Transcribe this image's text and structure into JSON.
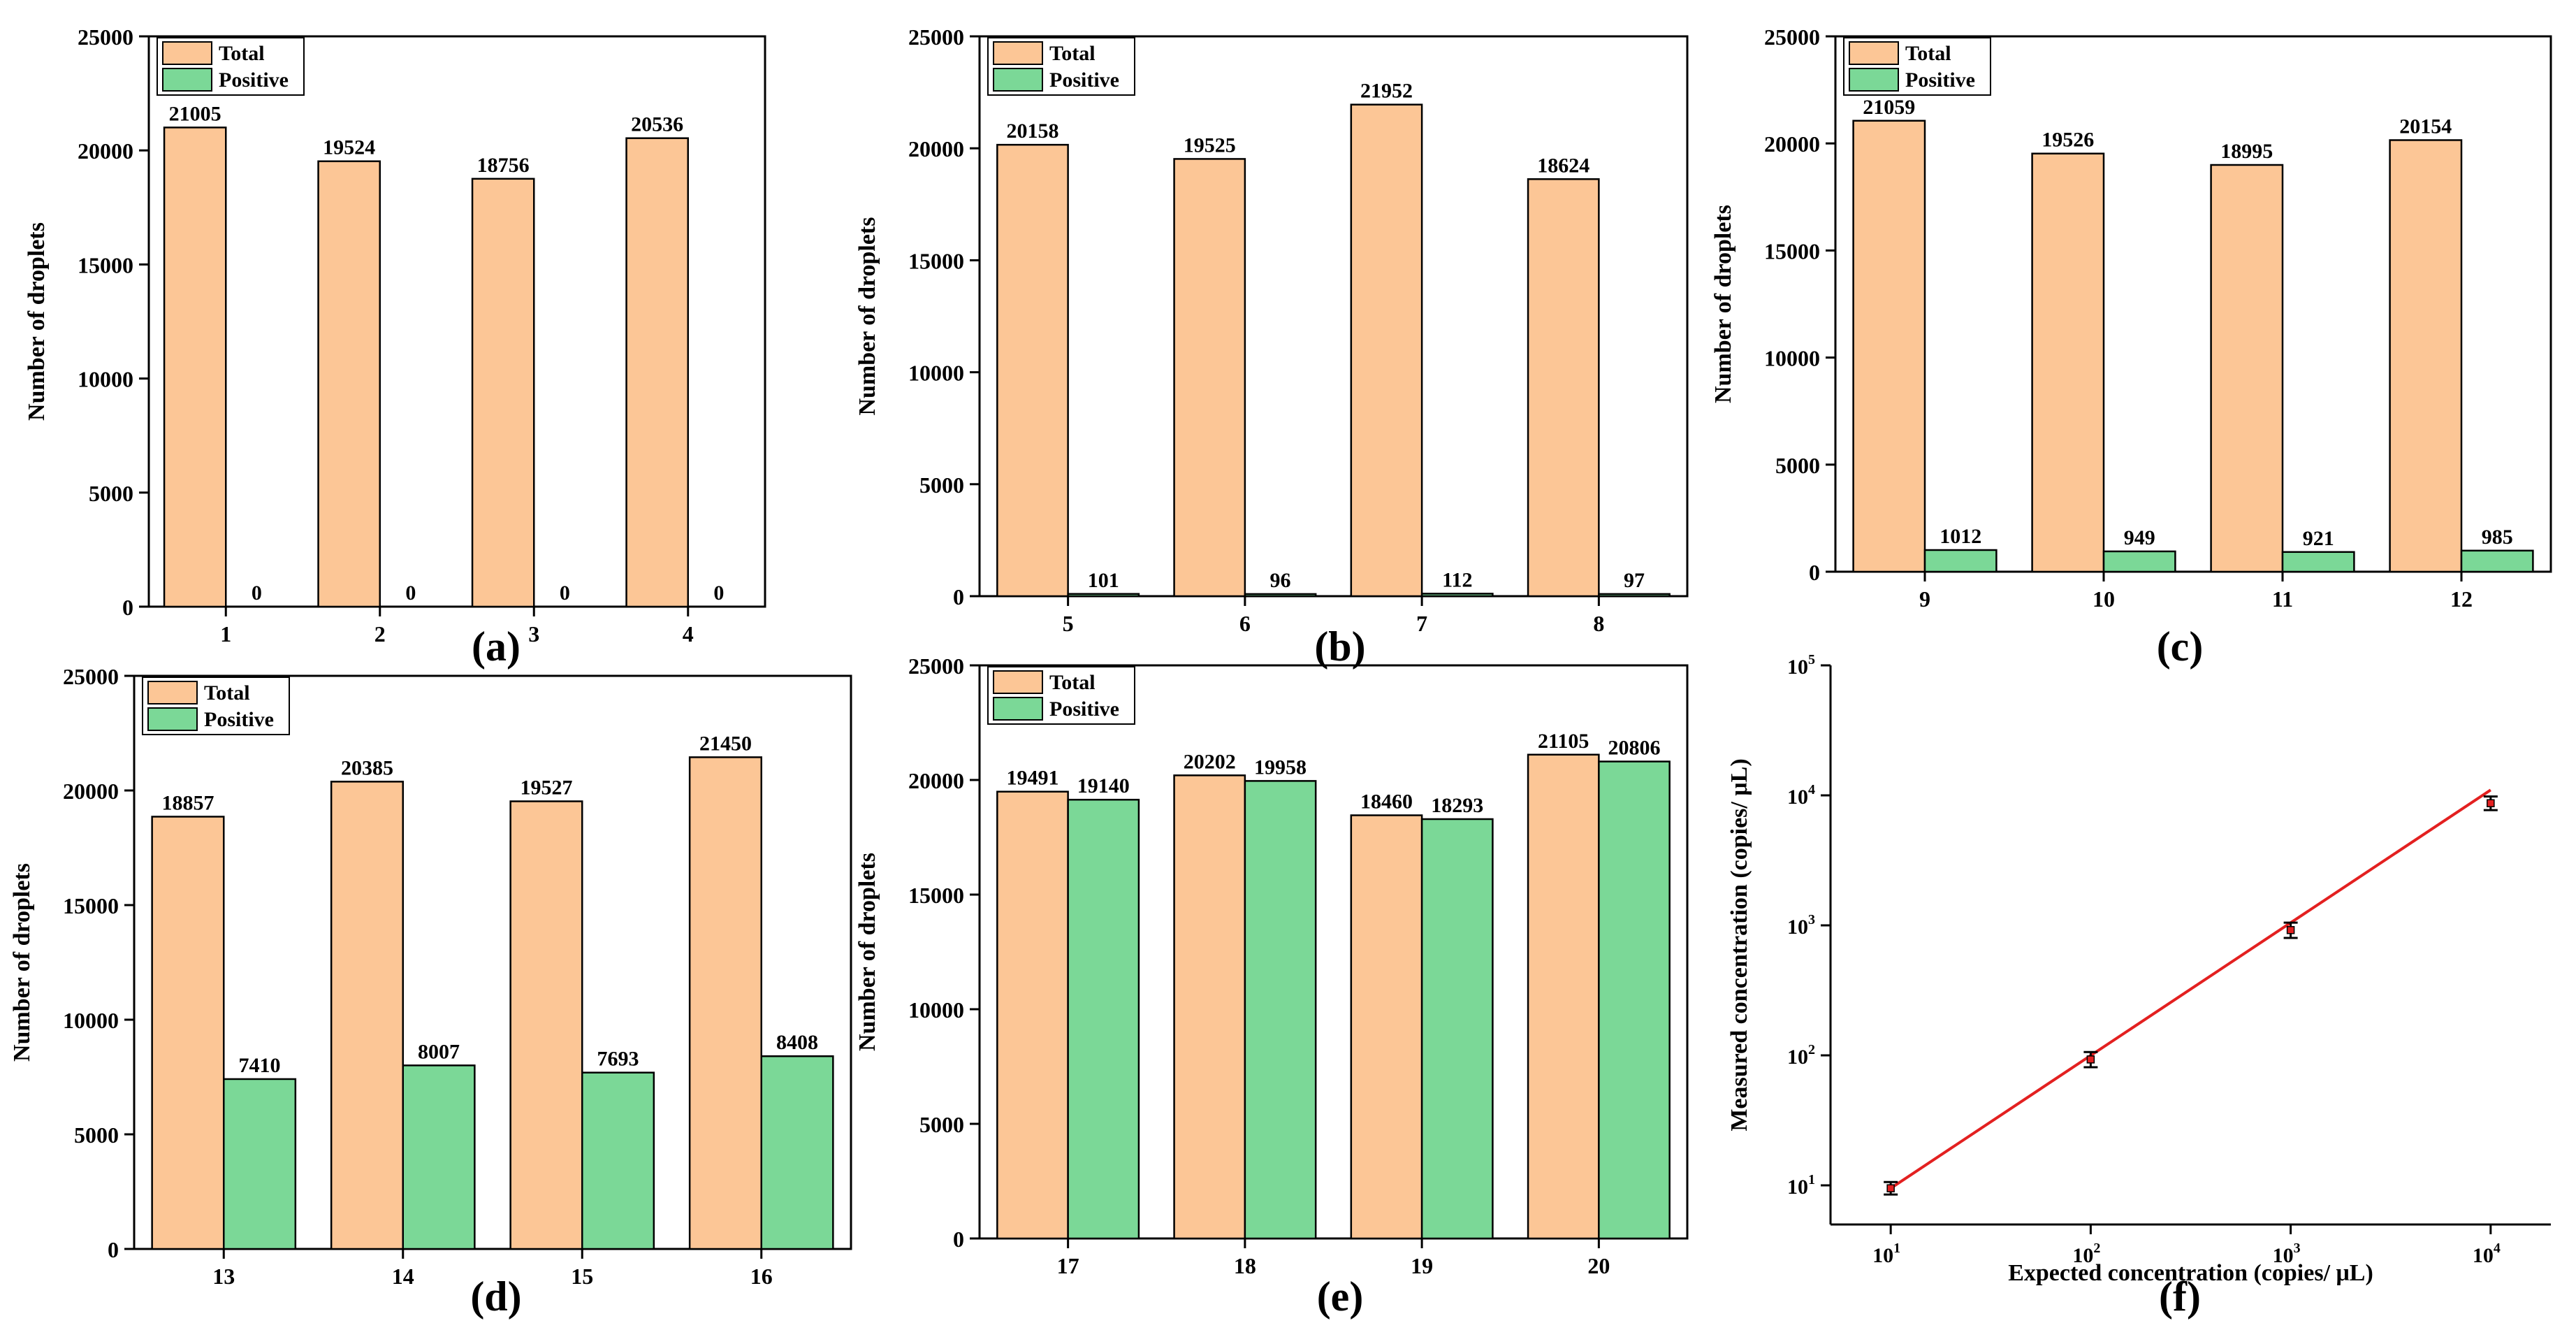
{
  "colors": {
    "total": "#FCC696",
    "positive": "#7BD897",
    "axis": "#000000",
    "fit": "#E32020"
  },
  "chart_data": [
    {
      "type": "bar",
      "panel_label": "(a)",
      "ylabel": "Number of droplets",
      "ylim": [
        0,
        25000
      ],
      "yticks": [
        0,
        5000,
        10000,
        15000,
        20000,
        25000
      ],
      "categories": [
        "1",
        "2",
        "3",
        "4"
      ],
      "series": [
        {
          "name": "Total",
          "values": [
            21005,
            19524,
            18756,
            20536
          ]
        },
        {
          "name": "Positive",
          "values": [
            0,
            0,
            0,
            0
          ]
        }
      ]
    },
    {
      "type": "bar",
      "panel_label": "(b)",
      "ylabel": "Number of droplets",
      "ylim": [
        0,
        25000
      ],
      "yticks": [
        0,
        5000,
        10000,
        15000,
        20000,
        25000
      ],
      "categories": [
        "5",
        "6",
        "7",
        "8"
      ],
      "series": [
        {
          "name": "Total",
          "values": [
            20158,
            19525,
            21952,
            18624
          ]
        },
        {
          "name": "Positive",
          "values": [
            101,
            96,
            112,
            97
          ]
        }
      ]
    },
    {
      "type": "bar",
      "panel_label": "(c)",
      "ylabel": "Number of droplets",
      "ylim": [
        0,
        25000
      ],
      "yticks": [
        0,
        5000,
        10000,
        15000,
        20000,
        25000
      ],
      "categories": [
        "9",
        "10",
        "11",
        "12"
      ],
      "series": [
        {
          "name": "Total",
          "values": [
            21059,
            19526,
            18995,
            20154
          ]
        },
        {
          "name": "Positive",
          "values": [
            1012,
            949,
            921,
            985
          ]
        }
      ]
    },
    {
      "type": "bar",
      "panel_label": "(d)",
      "ylabel": "Number of droplets",
      "ylim": [
        0,
        25000
      ],
      "yticks": [
        0,
        5000,
        10000,
        15000,
        20000,
        25000
      ],
      "categories": [
        "13",
        "14",
        "15",
        "16"
      ],
      "series": [
        {
          "name": "Total",
          "values": [
            18857,
            20385,
            19527,
            21450
          ]
        },
        {
          "name": "Positive",
          "values": [
            7410,
            8007,
            7693,
            8408
          ]
        }
      ]
    },
    {
      "type": "bar",
      "panel_label": "(e)",
      "ylabel": "Number of droplets",
      "ylim": [
        0,
        25000
      ],
      "yticks": [
        0,
        5000,
        10000,
        15000,
        20000,
        25000
      ],
      "categories": [
        "17",
        "18",
        "19",
        "20"
      ],
      "series": [
        {
          "name": "Total",
          "values": [
            19491,
            20202,
            18460,
            21105
          ]
        },
        {
          "name": "Positive",
          "values": [
            19140,
            19958,
            18293,
            20806
          ]
        }
      ]
    },
    {
      "type": "scatter",
      "panel_label": "(f)",
      "xlabel": "Expected concentration (copies/ μL)",
      "ylabel": "Measured concentration (copies/ μL)",
      "xscale": "log",
      "yscale": "log",
      "xlim": [
        5,
        20000
      ],
      "ylim": [
        5,
        100000
      ],
      "xticks": [
        10,
        100,
        1000,
        10000
      ],
      "yticks": [
        10,
        100,
        1000,
        10000,
        100000
      ],
      "tick_base": "10",
      "xtick_exponents": [
        "1",
        "2",
        "3",
        "4"
      ],
      "ytick_exponents": [
        "1",
        "2",
        "3",
        "4",
        "5"
      ],
      "x": [
        10,
        100,
        1000,
        10000
      ],
      "y": [
        9.5,
        93,
        920,
        8700
      ],
      "yerr_low": [
        8.5,
        81,
        800,
        7700
      ],
      "yerr_high": [
        10.6,
        106,
        1050,
        9800
      ],
      "fit_line": {
        "x": [
          10,
          10000
        ],
        "y": [
          9.5,
          11000
        ]
      }
    }
  ]
}
